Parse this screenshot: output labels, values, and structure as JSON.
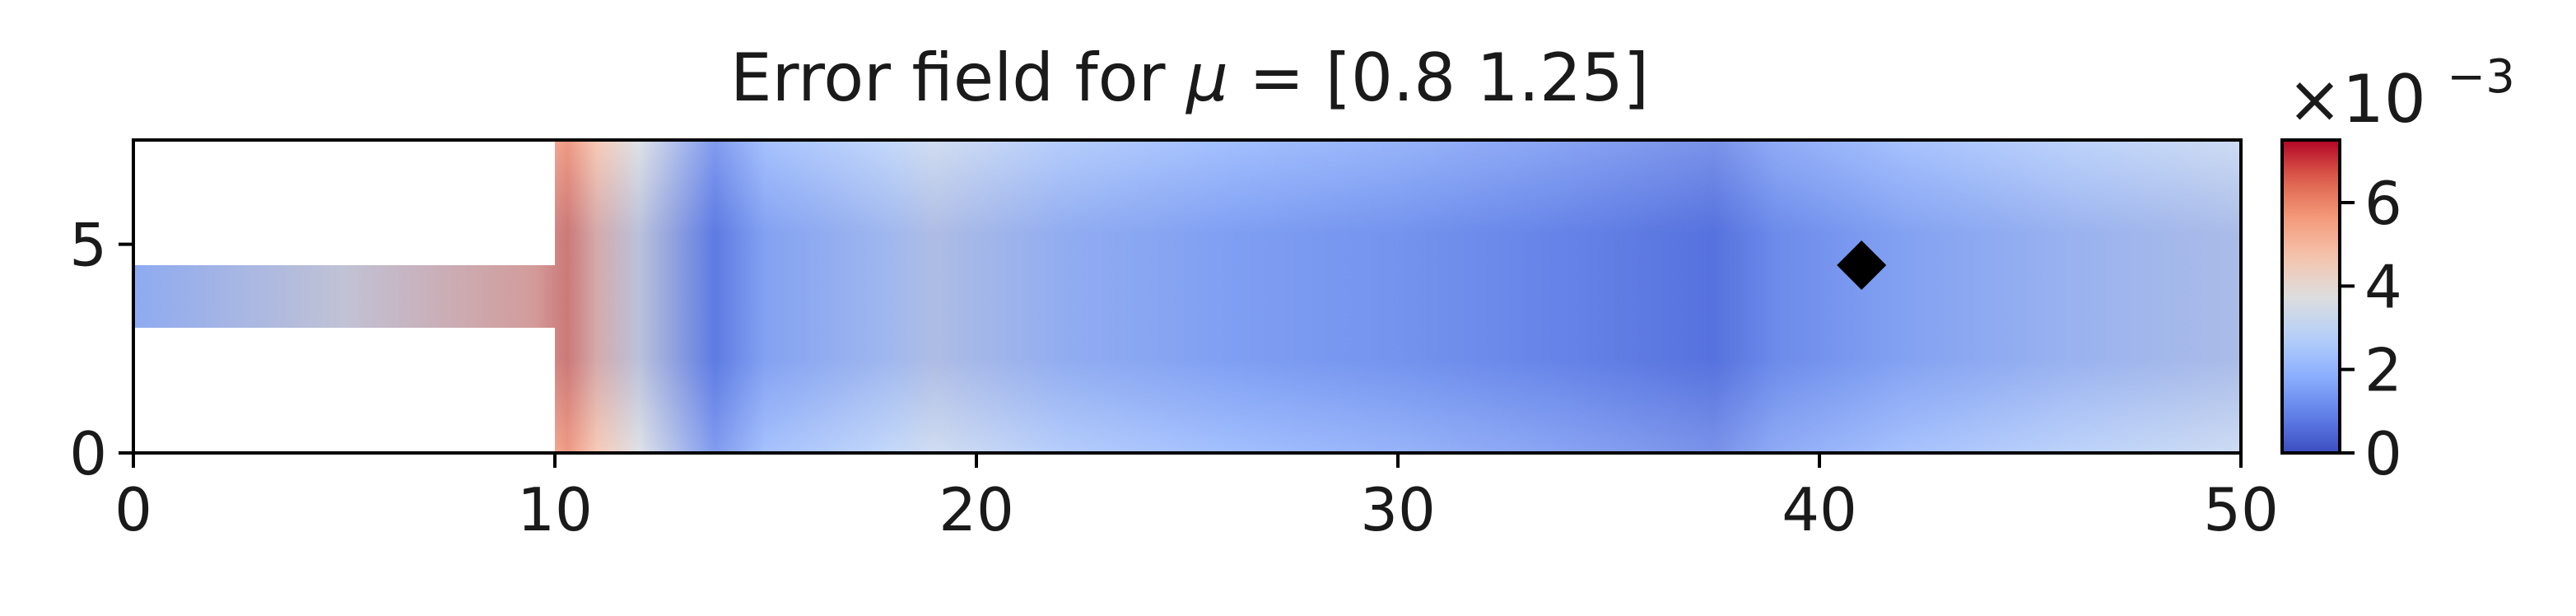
{
  "chart_data": {
    "type": "heatmap",
    "title_prefix": "Error field for",
    "title_symbol": "μ",
    "title_suffix": "= [0.8  1.25]",
    "xlabel": "",
    "ylabel": "",
    "xlim": [
      0,
      50
    ],
    "ylim": [
      0,
      7.5
    ],
    "xticks": [
      0,
      10,
      20,
      30,
      40,
      50
    ],
    "yticks": [
      0,
      5
    ],
    "domain": {
      "inlet_channel_x": [
        0,
        10
      ],
      "inlet_channel_y": [
        3,
        4.5
      ],
      "chamber_x": [
        10,
        50
      ],
      "chamber_y": [
        0,
        7.5
      ]
    },
    "colormap": "coolwarm",
    "colorbar": {
      "range": [
        0,
        7.5
      ],
      "ticks": [
        0,
        2,
        4,
        6
      ],
      "multiplier_base": "×10",
      "multiplier_exp": "−3"
    },
    "marker": {
      "shape": "diamond",
      "x": 41,
      "y": 4.5,
      "color": "#000000"
    },
    "field_profile_x": [
      0,
      5,
      9.5,
      10.3,
      11,
      12,
      13.8,
      15,
      18,
      19,
      22,
      26,
      30,
      34,
      37.5,
      39,
      42,
      46,
      50
    ],
    "field_profile_values": [
      2.3,
      3.8,
      5.2,
      6.0,
      4.8,
      3.6,
      1.0,
      2.0,
      2.8,
      3.2,
      2.4,
      1.9,
      1.6,
      1.2,
      0.8,
      1.4,
      2.0,
      2.6,
      3.1
    ],
    "colors": {
      "axes": "#000000",
      "background": "#ffffff"
    }
  }
}
